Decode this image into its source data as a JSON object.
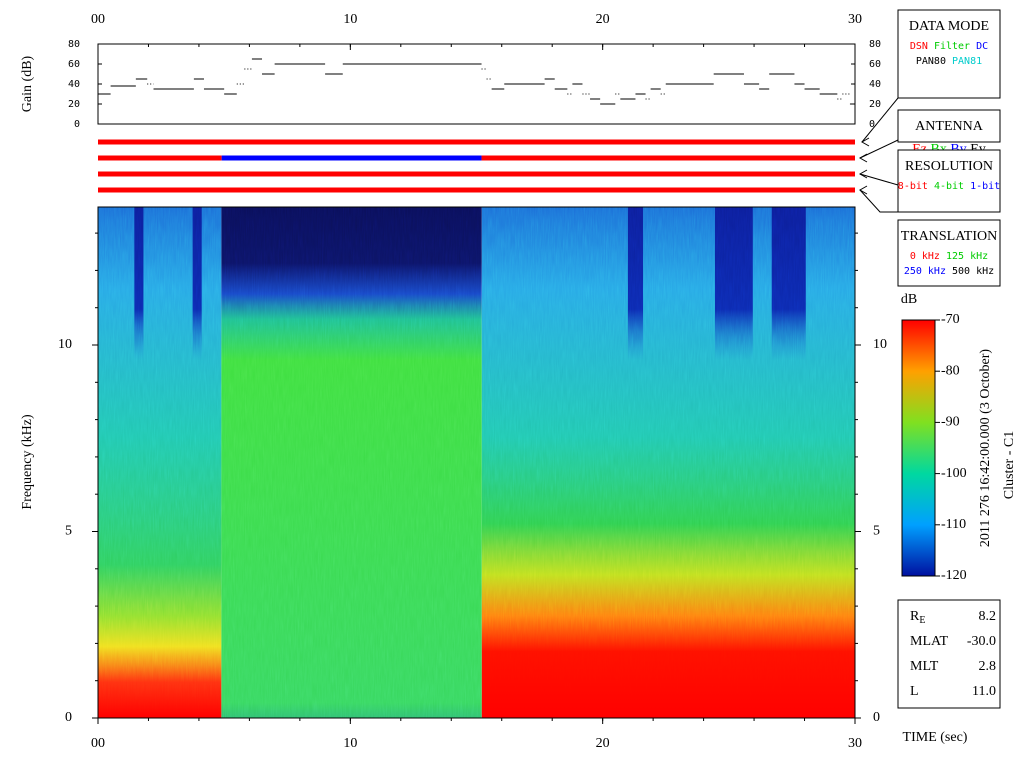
{
  "chart_data": [
    {
      "type": "line",
      "ylabel": "Gain (dB)",
      "x": [
        0,
        0.5,
        1.5,
        1.95,
        2.2,
        3.8,
        4.2,
        5.0,
        5.5,
        5.8,
        6.1,
        6.5,
        7.0,
        9.0,
        9.7,
        15.2,
        15.4,
        15.6,
        16.1,
        17.7,
        18.1,
        18.6,
        18.8,
        19.2,
        19.5,
        19.9,
        20.5,
        20.7,
        21.3,
        21.7,
        21.9,
        22.3,
        22.5,
        24.4,
        25.6,
        26.2,
        26.6,
        27.6,
        28.0,
        28.6,
        29.3,
        29.5,
        29.8
      ],
      "values": [
        30,
        38,
        45,
        40,
        35,
        45,
        35,
        30,
        40,
        55,
        65,
        50,
        60,
        50,
        60,
        55,
        45,
        35,
        40,
        45,
        35,
        30,
        40,
        30,
        25,
        20,
        30,
        25,
        30,
        25,
        35,
        30,
        40,
        50,
        40,
        35,
        50,
        40,
        35,
        30,
        25,
        30,
        20
      ],
      "color": "#000000",
      "xlim": [
        0,
        30
      ],
      "xticks": [
        {
          "value": 0,
          "label": "00"
        },
        10,
        20,
        30
      ],
      "ylim": [
        0,
        80
      ],
      "yticks": [
        0,
        20,
        40,
        60,
        80
      ]
    },
    {
      "type": "spectrogram",
      "ylabel": "Frequency (kHz)",
      "xlabel": "TIME (sec)",
      "xlim": [
        0,
        30
      ],
      "xticks": [
        {
          "value": 0,
          "label": "00"
        },
        10,
        20,
        30
      ],
      "ylim": [
        0,
        13.7
      ],
      "yticks": [
        0,
        5,
        10
      ],
      "colorbar": {
        "label": "dB",
        "lim": [
          -120,
          -70
        ],
        "ticks": [
          -70,
          -80,
          -90,
          -100,
          -110,
          -120
        ]
      }
    }
  ],
  "mode_bars": [
    [
      {
        "start": 0,
        "end": 30,
        "color": "#ff0000"
      }
    ],
    [
      {
        "start": 0,
        "end": 4.9,
        "color": "#ff0000"
      },
      {
        "start": 4.9,
        "end": 15.2,
        "color": "#0000ff"
      },
      {
        "start": 15.2,
        "end": 30,
        "color": "#ff0000"
      }
    ],
    [
      {
        "start": 0,
        "end": 30,
        "color": "#ff0000"
      }
    ],
    [
      {
        "start": 0,
        "end": 30,
        "color": "#ff0000"
      }
    ]
  ],
  "legend_boxes": [
    {
      "title": "DATA MODE",
      "lines": [
        [
          {
            "text": "DSN",
            "color": "#ff0000"
          },
          {
            "text": "Filter",
            "color": "#00cc00"
          },
          {
            "text": "DC",
            "color": "#0000ff"
          }
        ],
        [
          {
            "text": "PAN80",
            "color": "#000000"
          },
          {
            "text": "PAN81",
            "color": "#00cccc"
          }
        ]
      ]
    },
    {
      "title": "ANTENNA",
      "lines": [
        [
          {
            "text": "Ez",
            "color": "#ff0000"
          },
          {
            "text": "Bx",
            "color": "#00cc00"
          },
          {
            "text": "By",
            "color": "#0000ff"
          },
          {
            "text": "Ey",
            "color": "#000000"
          }
        ]
      ]
    },
    {
      "title": "RESOLUTION",
      "lines": [
        [
          {
            "text": "8-bit",
            "color": "#ff0000"
          },
          {
            "text": "4-bit",
            "color": "#00cc00"
          },
          {
            "text": "1-bit",
            "color": "#0000ff"
          }
        ]
      ]
    },
    {
      "title": "TRANSLATION",
      "lines": [
        [
          {
            "text": "0 kHz",
            "color": "#ff0000"
          },
          {
            "text": "125 kHz",
            "color": "#00cc00"
          }
        ],
        [
          {
            "text": "250 kHz",
            "color": "#0000ff"
          },
          {
            "text": "500 kHz",
            "color": "#000000"
          }
        ]
      ]
    }
  ],
  "info": [
    {
      "label": "R",
      "sub": "E",
      "value": "8.2"
    },
    {
      "label": "MLAT",
      "value": "-30.0"
    },
    {
      "label": "MLT",
      "value": "2.8"
    },
    {
      "label": "L",
      "value": "11.0"
    }
  ],
  "caption": [
    "2011 276 16:42:00.000 (3 October)",
    "Cluster - C1"
  ]
}
